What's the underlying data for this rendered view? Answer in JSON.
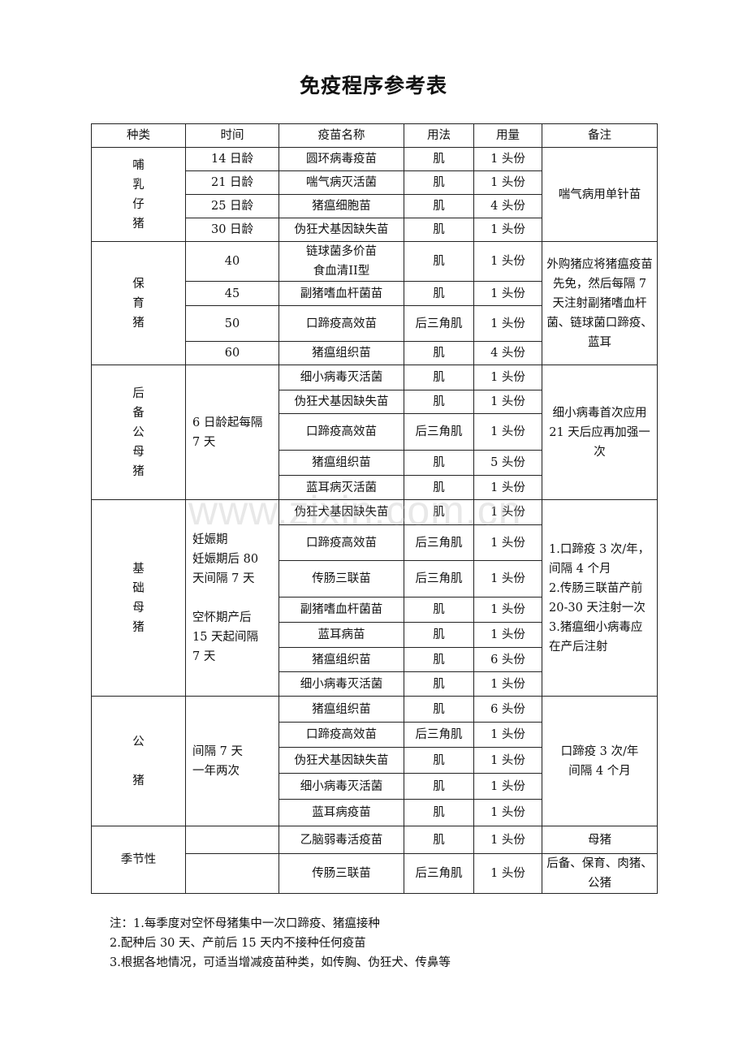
{
  "title": "免疫程序参考表",
  "headers": [
    "种类",
    "时间",
    "疫苗名称",
    "用法",
    "用量",
    "备注"
  ],
  "groups": [
    {
      "species": "哺\n乳\n仔\n猪",
      "time": null,
      "note": "喘气病用单针苗",
      "rows": [
        {
          "time": "14 日龄",
          "vaccine": "圆环病毒疫苗",
          "method": "肌",
          "dose": "1 头份"
        },
        {
          "time": "21 日龄",
          "vaccine": "喘气病灭活菌",
          "method": "肌",
          "dose": "1 头份"
        },
        {
          "time": "25 日龄",
          "vaccine": "猪瘟细胞苗",
          "method": "肌",
          "dose": "4 头份"
        },
        {
          "time": "30 日龄",
          "vaccine": "伪狂犬基因缺失苗",
          "method": "肌",
          "dose": "1 头份"
        }
      ]
    },
    {
      "species": "保\n育\n猪",
      "time": null,
      "note": "外购猪应将猪瘟疫苗先免，然后每隔 7 天注射副猪嗜血杆菌、链球菌口蹄疫、蓝耳",
      "rows": [
        {
          "time": "40",
          "vaccine": "链球菌多价苗\n食血清II型",
          "method": "肌",
          "dose": "1 头份"
        },
        {
          "time": "45",
          "vaccine": "副猪嗜血杆菌苗",
          "method": "肌",
          "dose": "1 头份"
        },
        {
          "time": "50",
          "vaccine": "口蹄疫高效苗",
          "method": "后三角肌",
          "dose": "1 头份"
        },
        {
          "time": "60",
          "vaccine": "猪瘟组织苗",
          "method": "肌",
          "dose": "4 头份"
        }
      ]
    },
    {
      "species": "后\n备\n公\n母\n猪",
      "time": "6 日龄起每隔\n7 天",
      "note": "细小病毒首次应用 21 天后应再加强一次",
      "rows": [
        {
          "vaccine": "细小病毒灭活菌",
          "method": "肌",
          "dose": "1 头份"
        },
        {
          "vaccine": "伪狂犬基因缺失苗",
          "method": "肌",
          "dose": "1 头份"
        },
        {
          "vaccine": "口蹄疫高效苗",
          "method": "后三角肌",
          "dose": "1 头份"
        },
        {
          "vaccine": "猪瘟组织苗",
          "method": "肌",
          "dose": "5 头份"
        },
        {
          "vaccine": "蓝耳病灭活菌",
          "method": "肌",
          "dose": "1 头份"
        }
      ]
    },
    {
      "species": "基\n础\n母\n猪",
      "time": "妊娠期\n妊娠期后 80\n天间隔 7 天\n\n空怀期产后\n15 天起间隔\n7 天",
      "note": "1.口蹄疫 3 次/年，\n间隔 4 个月\n2.传肠三联苗产前 20-30 天注射一次\n3.猪瘟细小病毒应在产后注射",
      "rows": [
        {
          "vaccine": "伪狂犬基因缺失苗",
          "method": "肌",
          "dose": "1 头份"
        },
        {
          "vaccine": "口蹄疫高效苗",
          "method": "后三角肌",
          "dose": "1 头份"
        },
        {
          "vaccine": "传肠三联苗",
          "method": "后三角肌",
          "dose": "1 头份"
        },
        {
          "vaccine": "副猪嗜血杆菌苗",
          "method": "肌",
          "dose": "1 头份"
        },
        {
          "vaccine": "蓝耳病苗",
          "method": "肌",
          "dose": "1 头份"
        },
        {
          "vaccine": "猪瘟组织苗",
          "method": "肌",
          "dose": "6 头份"
        },
        {
          "vaccine": "细小病毒灭活菌",
          "method": "肌",
          "dose": "1 头份"
        }
      ]
    },
    {
      "species": "公\n\n猪",
      "time": "间隔 7 天\n一年两次",
      "note": "口蹄疫 3 次/年\n间隔 4 个月",
      "rows": [
        {
          "vaccine": "猪瘟组织苗",
          "method": "肌",
          "dose": "6 头份"
        },
        {
          "vaccine": "口蹄疫高效苗",
          "method": "后三角肌",
          "dose": "1 头份"
        },
        {
          "vaccine": "伪狂犬基因缺失苗",
          "method": "肌",
          "dose": "1 头份"
        },
        {
          "vaccine": "细小病毒灭活菌",
          "method": "肌",
          "dose": "1 头份"
        },
        {
          "vaccine": "蓝耳病疫苗",
          "method": "肌",
          "dose": "1 头份"
        }
      ]
    },
    {
      "species": "季节性",
      "time": null,
      "note": null,
      "rows": [
        {
          "time": "",
          "vaccine": "乙脑弱毒活疫苗",
          "method": "肌",
          "dose": "1 头份",
          "note": "母猪"
        },
        {
          "time": "",
          "vaccine": "传肠三联苗",
          "method": "后三角肌",
          "dose": "1 头份",
          "note": "后备、保育、肉猪、\n公猪"
        }
      ]
    }
  ],
  "notes": [
    "注：1.每季度对空怀母猪集中一次口蹄疫、猪瘟接种",
    "2.配种后 30 天、产前后 15 天内不接种任何疫苗",
    "3.根据各地情况，可适当增减疫苗种类，如传胸、伪狂犬、传鼻等"
  ],
  "watermark": "www.zixin.com.cn"
}
